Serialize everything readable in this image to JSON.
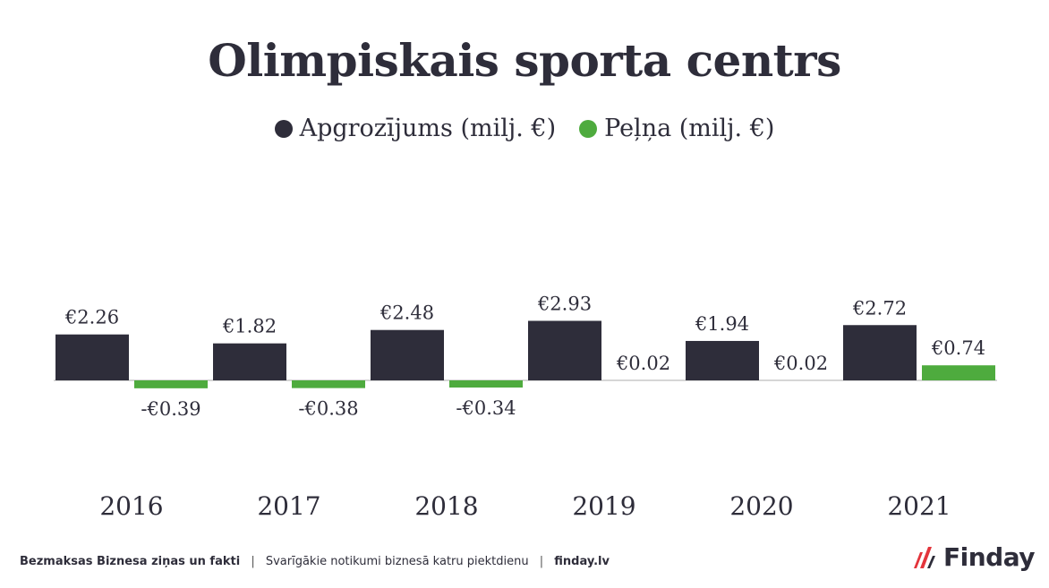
{
  "chart_data": {
    "type": "bar",
    "title": "Olimpiskais sporta centrs",
    "categories": [
      "2016",
      "2017",
      "2018",
      "2019",
      "2020",
      "2021"
    ],
    "series": [
      {
        "name": "Apgrozījums (milj. €)",
        "color": "#2e2d3a",
        "values": [
          2.26,
          1.82,
          2.48,
          2.93,
          1.94,
          2.72
        ],
        "labels": [
          "€2.26",
          "€1.82",
          "€2.48",
          "€2.93",
          "€1.94",
          "€2.72"
        ]
      },
      {
        "name": "Peļņa (milj. €)",
        "color": "#4eab3e",
        "values": [
          -0.39,
          -0.38,
          -0.34,
          0.02,
          0.02,
          0.74
        ],
        "labels": [
          "-€0.39",
          "-€0.38",
          "-€0.34",
          "€0.02",
          "€0.02",
          "€0.74"
        ]
      }
    ],
    "xlabel": "",
    "ylabel": "",
    "grid": false,
    "legend": "top-center"
  },
  "footer": {
    "part1": "Bezmaksas Biznesa ziņas un fakti",
    "sep1": "|",
    "part2": "Svarīgākie notikumi biznesā katru piektdienu",
    "sep2": "|",
    "part3": "finday.lv"
  },
  "logo": {
    "text": "Finday",
    "icon": "finday-slashes-icon",
    "accent": "#e3343b"
  }
}
